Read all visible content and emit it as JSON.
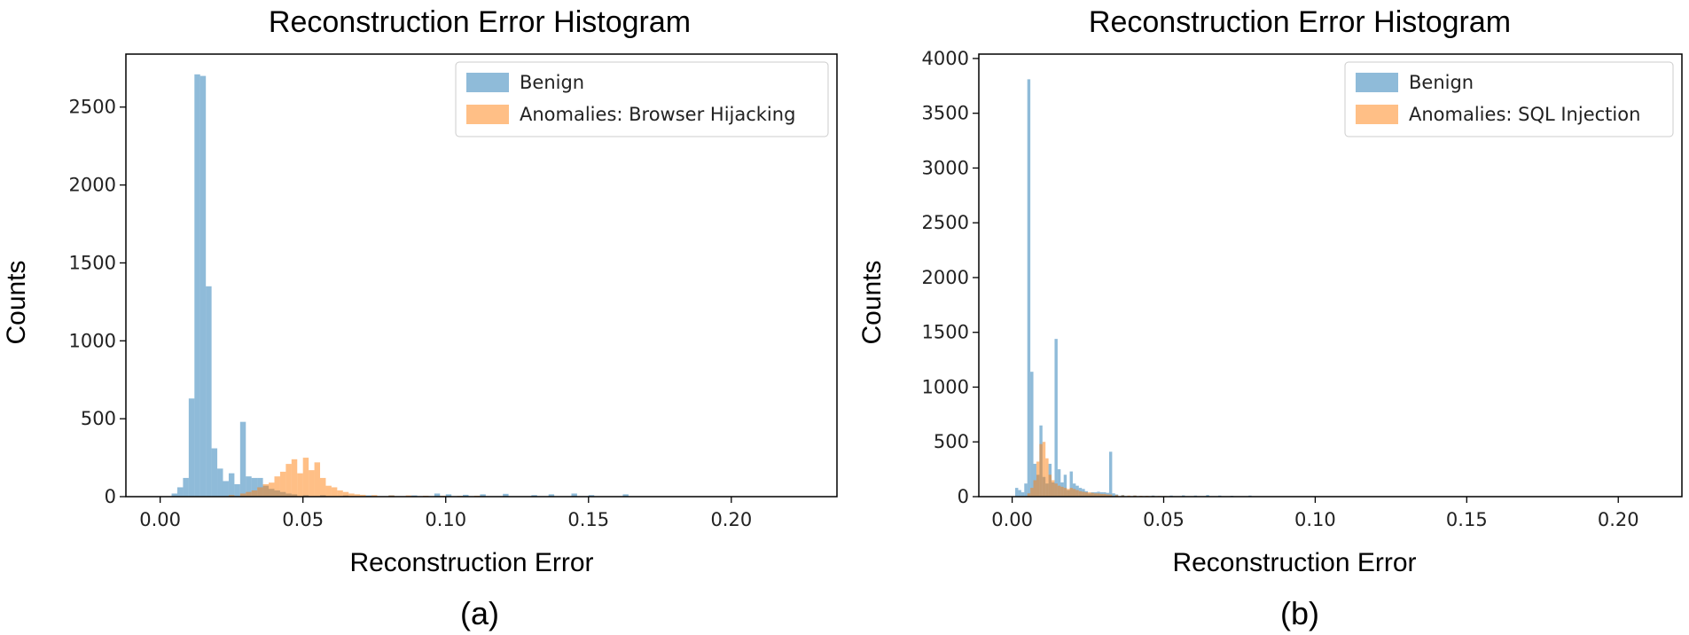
{
  "chart_data": [
    {
      "type": "bar",
      "panel_label": "(a)",
      "title": "Reconstruction Error Histogram",
      "xlabel": "Reconstruction Error",
      "ylabel": "Counts",
      "xlim": [
        -0.012,
        0.237
      ],
      "ylim": [
        0,
        2840
      ],
      "xticks": [
        0.0,
        0.05,
        0.1,
        0.15,
        0.2
      ],
      "xtick_labels": [
        "0.00",
        "0.05",
        "0.10",
        "0.15",
        "0.20"
      ],
      "yticks": [
        0,
        500,
        1000,
        1500,
        2000,
        2500
      ],
      "ytick_labels": [
        "0",
        "500",
        "1000",
        "1500",
        "2000",
        "2500"
      ],
      "legend_position": "upper-right",
      "bin_width": 0.002,
      "series": [
        {
          "name": "Benign",
          "color": "#1f77b4",
          "alpha": 0.5,
          "bins": [
            [
              0.004,
              20
            ],
            [
              0.006,
              60
            ],
            [
              0.008,
              120
            ],
            [
              0.01,
              630
            ],
            [
              0.012,
              2710
            ],
            [
              0.014,
              2700
            ],
            [
              0.016,
              1350
            ],
            [
              0.018,
              310
            ],
            [
              0.02,
              180
            ],
            [
              0.022,
              100
            ],
            [
              0.024,
              150
            ],
            [
              0.026,
              80
            ],
            [
              0.028,
              480
            ],
            [
              0.03,
              130
            ],
            [
              0.032,
              120
            ],
            [
              0.034,
              120
            ],
            [
              0.036,
              70
            ],
            [
              0.038,
              50
            ],
            [
              0.04,
              40
            ],
            [
              0.042,
              30
            ],
            [
              0.044,
              20
            ],
            [
              0.046,
              15
            ],
            [
              0.05,
              10
            ],
            [
              0.056,
              10
            ],
            [
              0.064,
              8
            ],
            [
              0.072,
              8
            ],
            [
              0.08,
              8
            ],
            [
              0.088,
              8
            ],
            [
              0.096,
              20
            ],
            [
              0.1,
              15
            ],
            [
              0.106,
              12
            ],
            [
              0.112,
              15
            ],
            [
              0.12,
              18
            ],
            [
              0.13,
              10
            ],
            [
              0.136,
              15
            ],
            [
              0.144,
              20
            ],
            [
              0.15,
              10
            ],
            [
              0.162,
              15
            ]
          ]
        },
        {
          "name": "Anomalies: Browser Hijacking",
          "color": "#ff7f0e",
          "alpha": 0.5,
          "bins": [
            [
              0.024,
              10
            ],
            [
              0.028,
              20
            ],
            [
              0.03,
              30
            ],
            [
              0.032,
              40
            ],
            [
              0.034,
              60
            ],
            [
              0.036,
              80
            ],
            [
              0.038,
              90
            ],
            [
              0.04,
              130
            ],
            [
              0.042,
              160
            ],
            [
              0.044,
              210
            ],
            [
              0.046,
              240
            ],
            [
              0.048,
              150
            ],
            [
              0.05,
              250
            ],
            [
              0.052,
              170
            ],
            [
              0.054,
              220
            ],
            [
              0.056,
              120
            ],
            [
              0.058,
              70
            ],
            [
              0.06,
              60
            ],
            [
              0.062,
              40
            ],
            [
              0.064,
              30
            ],
            [
              0.066,
              20
            ],
            [
              0.068,
              15
            ],
            [
              0.07,
              12
            ],
            [
              0.074,
              10
            ],
            [
              0.08,
              8
            ],
            [
              0.086,
              8
            ],
            [
              0.092,
              6
            ],
            [
              0.098,
              6
            ],
            [
              0.104,
              5
            ],
            [
              0.11,
              6
            ]
          ]
        }
      ]
    },
    {
      "type": "bar",
      "panel_label": "(b)",
      "title": "Reconstruction Error Histogram",
      "xlabel": "Reconstruction Error",
      "ylabel": "Counts",
      "xlim": [
        -0.011,
        0.221
      ],
      "ylim": [
        0,
        4040
      ],
      "xticks": [
        0.0,
        0.05,
        0.1,
        0.15,
        0.2
      ],
      "xtick_labels": [
        "0.00",
        "0.05",
        "0.10",
        "0.15",
        "0.20"
      ],
      "yticks": [
        0,
        500,
        1000,
        1500,
        2000,
        2500,
        3000,
        3500,
        4000
      ],
      "ytick_labels": [
        "0",
        "500",
        "1000",
        "1500",
        "2000",
        "2500",
        "3000",
        "3500",
        "4000"
      ],
      "legend_position": "upper-right",
      "bin_width": 0.001,
      "series": [
        {
          "name": "Benign",
          "color": "#1f77b4",
          "alpha": 0.5,
          "bins": [
            [
              0.001,
              80
            ],
            [
              0.002,
              60
            ],
            [
              0.003,
              40
            ],
            [
              0.004,
              120
            ],
            [
              0.005,
              3810
            ],
            [
              0.006,
              1140
            ],
            [
              0.007,
              300
            ],
            [
              0.008,
              200
            ],
            [
              0.009,
              650
            ],
            [
              0.01,
              180
            ],
            [
              0.011,
              120
            ],
            [
              0.012,
              300
            ],
            [
              0.013,
              130
            ],
            [
              0.014,
              1440
            ],
            [
              0.015,
              250
            ],
            [
              0.016,
              130
            ],
            [
              0.017,
              200
            ],
            [
              0.018,
              60
            ],
            [
              0.019,
              230
            ],
            [
              0.02,
              120
            ],
            [
              0.021,
              100
            ],
            [
              0.022,
              80
            ],
            [
              0.023,
              70
            ],
            [
              0.024,
              50
            ],
            [
              0.025,
              30
            ],
            [
              0.026,
              40
            ],
            [
              0.027,
              40
            ],
            [
              0.028,
              45
            ],
            [
              0.029,
              40
            ],
            [
              0.03,
              40
            ],
            [
              0.031,
              35
            ],
            [
              0.032,
              410
            ],
            [
              0.033,
              30
            ],
            [
              0.034,
              20
            ],
            [
              0.036,
              15
            ],
            [
              0.04,
              10
            ],
            [
              0.046,
              10
            ],
            [
              0.052,
              10
            ],
            [
              0.056,
              12
            ],
            [
              0.06,
              10
            ],
            [
              0.064,
              15
            ],
            [
              0.068,
              10
            ],
            [
              0.072,
              8
            ],
            [
              0.078,
              10
            ]
          ]
        },
        {
          "name": "Anomalies: SQL Injection",
          "color": "#ff7f0e",
          "alpha": 0.5,
          "bins": [
            [
              0.005,
              30
            ],
            [
              0.006,
              80
            ],
            [
              0.007,
              150
            ],
            [
              0.008,
              320
            ],
            [
              0.009,
              480
            ],
            [
              0.01,
              500
            ],
            [
              0.011,
              350
            ],
            [
              0.012,
              200
            ],
            [
              0.013,
              150
            ],
            [
              0.014,
              120
            ],
            [
              0.015,
              100
            ],
            [
              0.016,
              90
            ],
            [
              0.017,
              80
            ],
            [
              0.018,
              70
            ],
            [
              0.019,
              80
            ],
            [
              0.02,
              70
            ],
            [
              0.021,
              60
            ],
            [
              0.022,
              50
            ],
            [
              0.023,
              45
            ],
            [
              0.024,
              40
            ],
            [
              0.025,
              40
            ],
            [
              0.026,
              35
            ],
            [
              0.027,
              30
            ],
            [
              0.028,
              30
            ],
            [
              0.029,
              25
            ],
            [
              0.03,
              25
            ],
            [
              0.031,
              20
            ],
            [
              0.032,
              20
            ],
            [
              0.034,
              15
            ],
            [
              0.036,
              12
            ],
            [
              0.038,
              10
            ],
            [
              0.04,
              10
            ],
            [
              0.042,
              8
            ],
            [
              0.044,
              8
            ],
            [
              0.046,
              6
            ],
            [
              0.048,
              6
            ],
            [
              0.05,
              5
            ]
          ]
        }
      ]
    }
  ]
}
